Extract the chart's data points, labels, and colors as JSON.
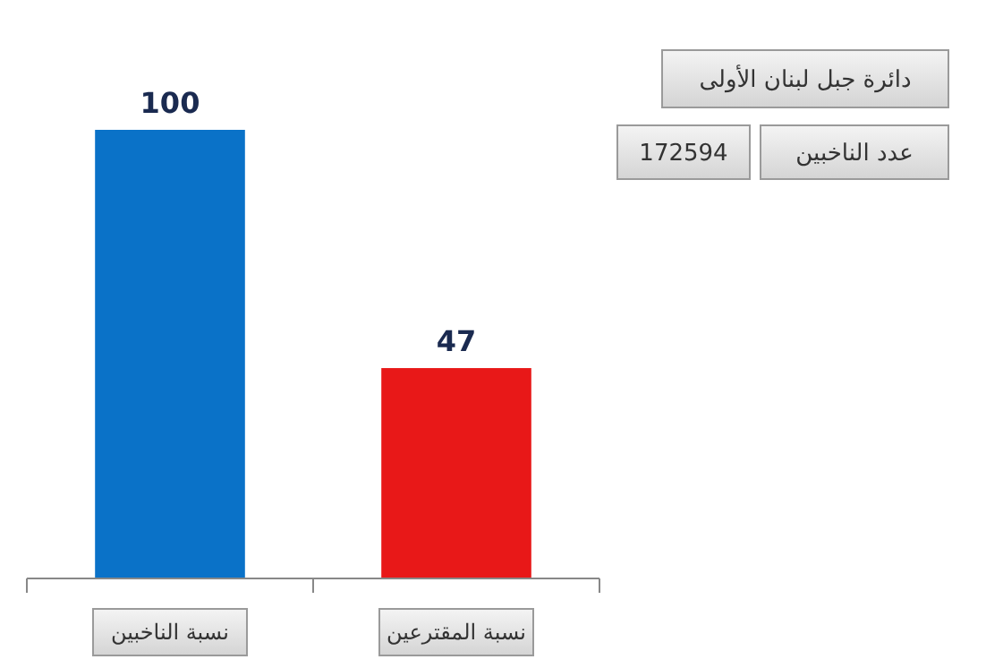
{
  "chart_data": {
    "type": "bar",
    "title": "دائرة جبل لبنان الأولى",
    "annotations": [
      "عدد الناخبين",
      "172594"
    ],
    "categories": [
      "نسبة الناخبين",
      "نسبة المقترعين"
    ],
    "values": [
      100,
      47
    ],
    "colors": [
      "#0a72c8",
      "#e81818"
    ],
    "data_labels": true
  }
}
